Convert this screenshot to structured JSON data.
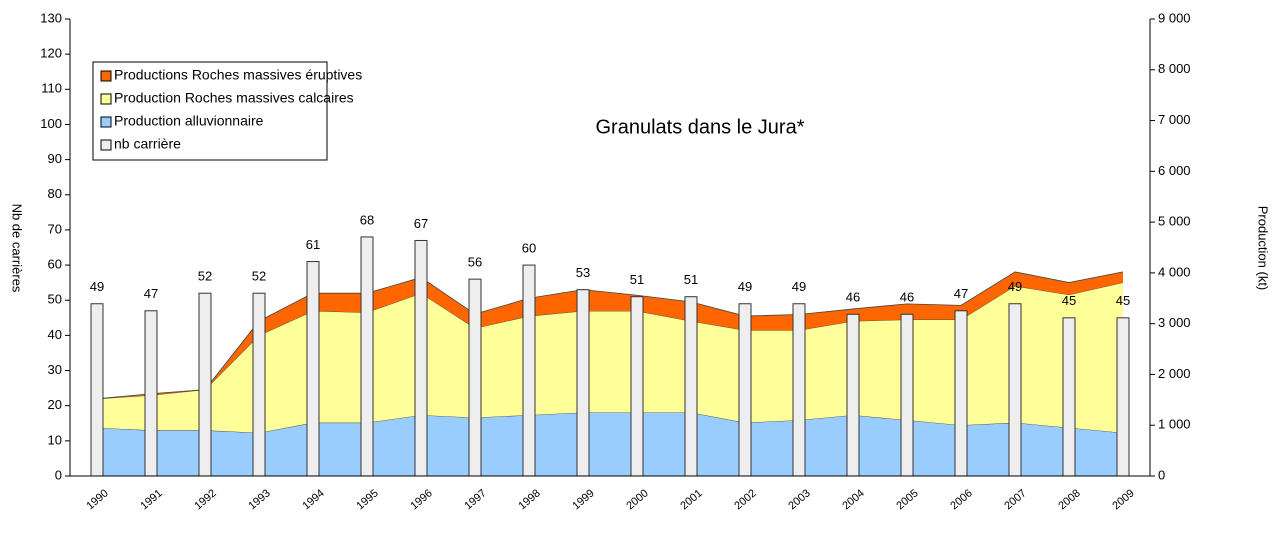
{
  "chart_data": {
    "type": "bar-area",
    "title": "Granulats dans le Jura*",
    "ylabel": "Nb de carrières",
    "y2label": "Production (kt)",
    "categories": [
      "1990",
      "1991",
      "1992",
      "1993",
      "1994",
      "1995",
      "1996",
      "1997",
      "1998",
      "1999",
      "2000",
      "2001",
      "2002",
      "2003",
      "2004",
      "2005",
      "2006",
      "2007",
      "2008",
      "2009"
    ],
    "ylim": [
      0,
      130
    ],
    "yticks": [
      0,
      10,
      20,
      30,
      40,
      50,
      60,
      70,
      80,
      90,
      100,
      110,
      120,
      130
    ],
    "y2lim": [
      0,
      9000
    ],
    "y2ticks": [
      0,
      {
        "value": 1000,
        "label": "1 000"
      },
      {
        "value": 2000,
        "label": "2 000"
      },
      {
        "value": 3000,
        "label": "3 000"
      },
      {
        "value": 4000,
        "label": "4 000"
      },
      {
        "value": 5000,
        "label": "5 000"
      },
      {
        "value": 6000,
        "label": "6 000"
      },
      {
        "value": 7000,
        "label": "7 000"
      },
      {
        "value": 8000,
        "label": "8 000"
      },
      {
        "value": 9000,
        "label": "9 000"
      }
    ],
    "legend": "upper left",
    "series": [
      {
        "name": "Productions Roches massives éruptives",
        "color": "#ff6600",
        "axis": "y2",
        "kind": "area",
        "values": [
          0,
          30,
          0,
          280,
          350,
          380,
          310,
          280,
          350,
          420,
          310,
          380,
          280,
          310,
          240,
          310,
          280,
          280,
          240,
          210
        ]
      },
      {
        "name": "Production Roches massives calcaires",
        "color": "#ffff99",
        "axis": "y2",
        "kind": "area",
        "values": [
          570,
          690,
          800,
          1920,
          2200,
          2170,
          2400,
          1760,
          1950,
          2000,
          2000,
          1800,
          1820,
          1770,
          1850,
          1980,
          2080,
          2690,
          2620,
          2960
        ]
      },
      {
        "name": "Production alluvionnaire",
        "color": "#99ccff",
        "axis": "y2",
        "kind": "area",
        "values": [
          950,
          900,
          900,
          850,
          1050,
          1050,
          1200,
          1150,
          1200,
          1250,
          1250,
          1250,
          1050,
          1100,
          1200,
          1100,
          1000,
          1050,
          950,
          850
        ]
      },
      {
        "name": "nb carrière",
        "color": "#eeeeee",
        "kind": "bar",
        "values": [
          49,
          47,
          52,
          52,
          61,
          68,
          67,
          56,
          60,
          53,
          51,
          51,
          49,
          49,
          46,
          46,
          47,
          49,
          45,
          45
        ]
      }
    ]
  }
}
